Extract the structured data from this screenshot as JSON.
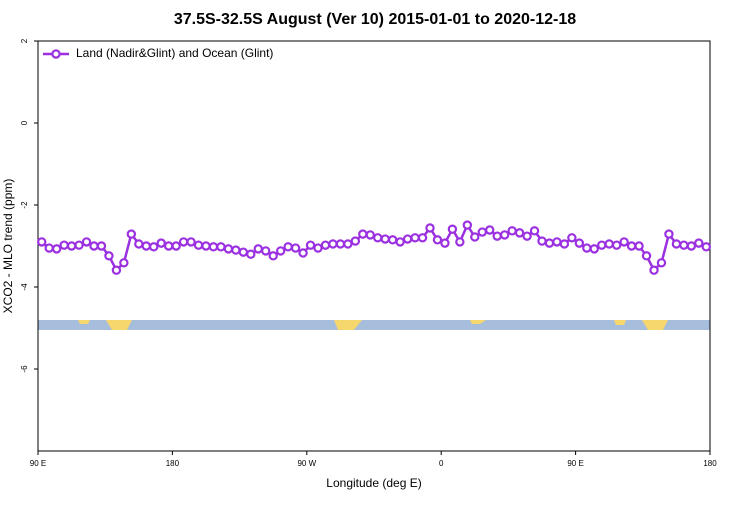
{
  "chart_data": {
    "type": "line",
    "title": "37.5S-32.5S August (Ver 10)   2015-01-01 to 2020-12-18",
    "x_label": "Longitude (deg E)",
    "y_label": "XCO2 - MLO trend (ppm)",
    "x": [
      92.5,
      97.5,
      102.5,
      107.5,
      112.5,
      117.5,
      122.5,
      127.5,
      132.5,
      137.5,
      142.5,
      147.5,
      152.5,
      157.5,
      162.5,
      167.5,
      172.5,
      177.5,
      182.5,
      187.5,
      192.5,
      197.5,
      202.5,
      207.5,
      212.5,
      217.5,
      222.5,
      227.5,
      232.5,
      237.5,
      242.5,
      247.5,
      252.5,
      257.5,
      262.5,
      267.5,
      272.5,
      277.5,
      282.5,
      287.5,
      292.5,
      297.5,
      302.5,
      307.5,
      312.5,
      317.5,
      322.5,
      327.5,
      332.5,
      337.5,
      342.5,
      347.5,
      352.5,
      357.5,
      362.5,
      367.5,
      372.5,
      377.5,
      382.5,
      387.5,
      392.5,
      397.5,
      402.5,
      407.5,
      412.5,
      417.5,
      422.5,
      427.5,
      432.5,
      437.5,
      442.5,
      447.5,
      452.5,
      457.5,
      462.5,
      467.5,
      472.5,
      477.5,
      482.5,
      487.5,
      492.5,
      497.5,
      502.5,
      507.5,
      512.5,
      517.5,
      522.5,
      527.5,
      532.5,
      537.5
    ],
    "series": [
      {
        "name": "Land (Nadir&Glint) and Ocean (Glint)",
        "color": "#9b30e0",
        "values": [
          -2.9,
          -3.05,
          -3.07,
          -2.98,
          -3.0,
          -2.98,
          -2.9,
          -3.0,
          -3.0,
          -3.24,
          -3.59,
          -3.41,
          -2.71,
          -2.95,
          -3.0,
          -3.02,
          -2.93,
          -3.0,
          -3.0,
          -2.9,
          -2.9,
          -2.98,
          -3.0,
          -3.02,
          -3.02,
          -3.07,
          -3.1,
          -3.15,
          -3.2,
          -3.07,
          -3.12,
          -3.24,
          -3.12,
          -3.02,
          -3.05,
          -3.17,
          -2.98,
          -3.05,
          -2.98,
          -2.95,
          -2.95,
          -2.95,
          -2.88,
          -2.71,
          -2.73,
          -2.8,
          -2.83,
          -2.85,
          -2.9,
          -2.83,
          -2.8,
          -2.8,
          -2.56,
          -2.85,
          -2.93,
          -2.59,
          -2.9,
          -2.49,
          -2.78,
          -2.66,
          -2.61,
          -2.76,
          -2.73,
          -2.63,
          -2.68,
          -2.76,
          -2.63,
          -2.88,
          -2.93,
          -2.9,
          -2.95,
          -2.8,
          -2.93,
          -3.05,
          -3.07,
          -2.98,
          -2.95,
          -2.98,
          -2.9,
          -3.0,
          -3.0,
          -3.24,
          -3.59,
          -3.41,
          -2.71,
          -2.95,
          -2.98,
          -3.0,
          -2.93,
          -3.02
        ]
      }
    ],
    "xlim": [
      90,
      540
    ],
    "xticks": [
      {
        "value": 90,
        "label": "90 E"
      },
      180,
      {
        "value": 270,
        "label": "90 W"
      },
      {
        "value": 360,
        "label": "0"
      },
      {
        "value": 450,
        "label": "90 E"
      },
      {
        "value": 540,
        "label": "180"
      }
    ],
    "ylim": [
      -8,
      2
    ],
    "yticks": [
      2,
      0,
      -2,
      -4,
      -6
    ],
    "legend": "top-left"
  }
}
